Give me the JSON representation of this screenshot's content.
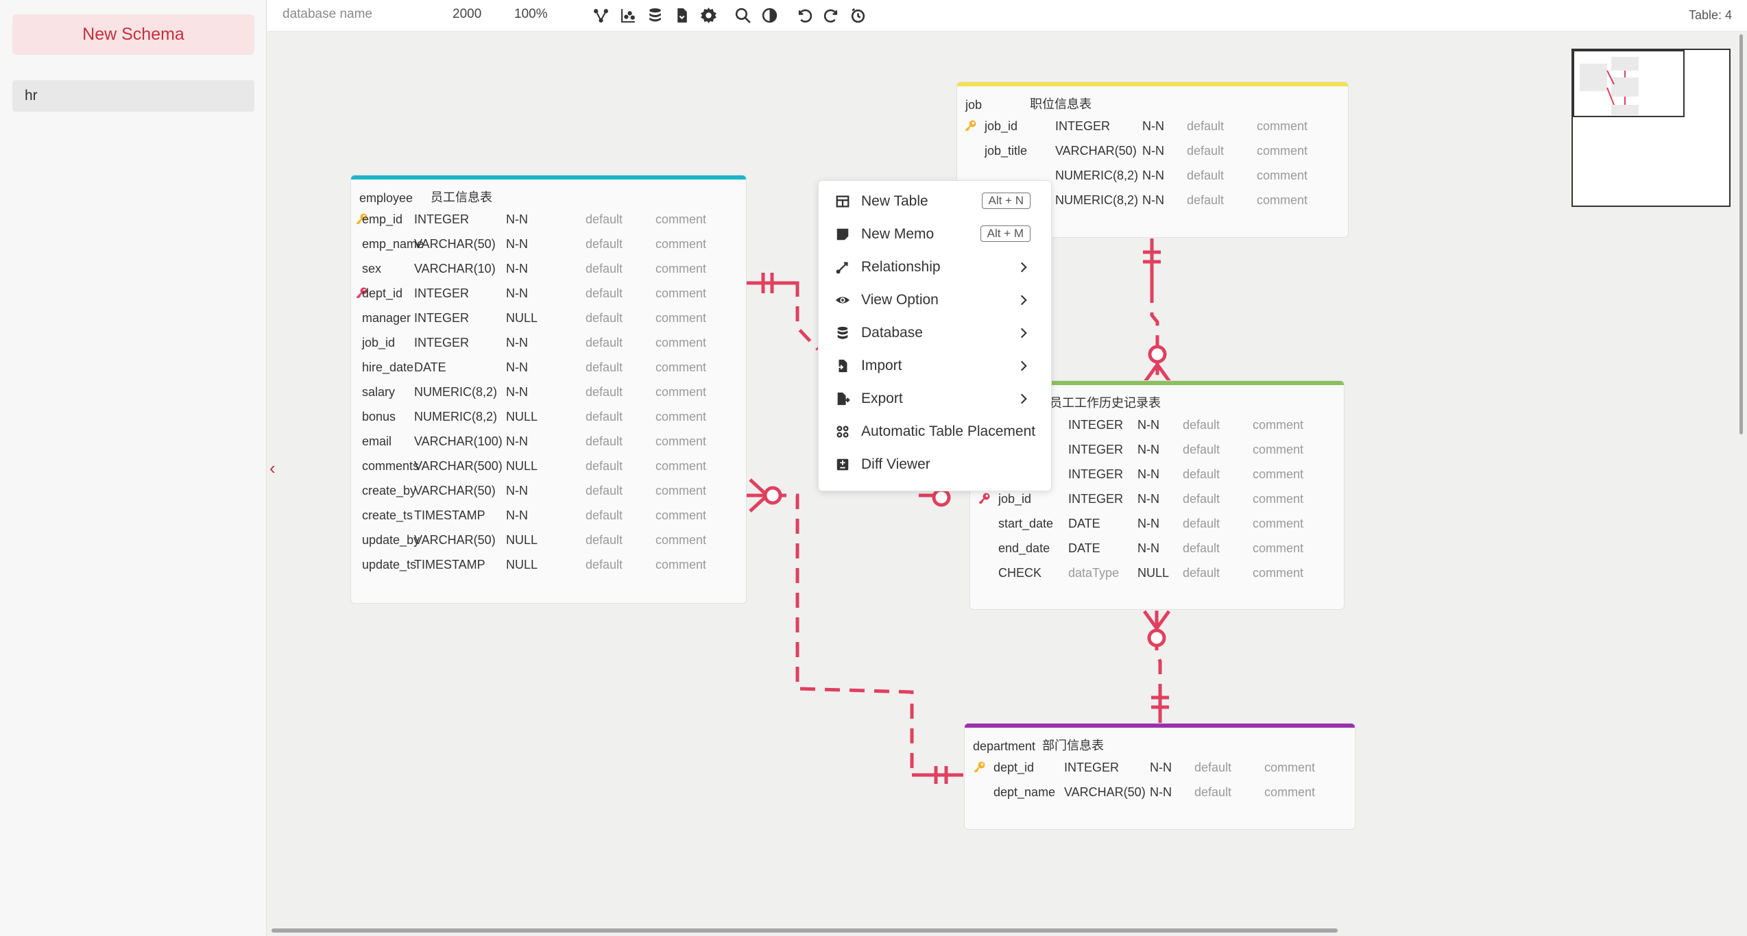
{
  "sidebar": {
    "new_schema_label": "New Schema",
    "schemas": [
      "hr"
    ],
    "collapse_icon": "chevron-left-icon"
  },
  "toolbar": {
    "database_name_placeholder": "database name",
    "canvas_size": "2000",
    "zoom": "100%",
    "icons": [
      "relation-icon",
      "chart-icon",
      "database-icon",
      "file-icon",
      "gear-icon",
      "search-icon",
      "theme-icon",
      "undo-icon",
      "redo-icon",
      "history-icon"
    ],
    "table_count": "Table: 4"
  },
  "tables": {
    "employee": {
      "name": "employee",
      "comment": "员工信息表",
      "accent": "#1fb5c8",
      "columns": [
        {
          "name": "emp_id",
          "type": "INTEGER",
          "nullable": "N-N",
          "default": "default",
          "comment": "comment",
          "key": "pk"
        },
        {
          "name": "emp_name",
          "type": "VARCHAR(50)",
          "nullable": "N-N",
          "default": "default",
          "comment": "comment",
          "key": ""
        },
        {
          "name": "sex",
          "type": "VARCHAR(10)",
          "nullable": "N-N",
          "default": "default",
          "comment": "comment",
          "key": ""
        },
        {
          "name": "dept_id",
          "type": "INTEGER",
          "nullable": "N-N",
          "default": "default",
          "comment": "comment",
          "key": "fk"
        },
        {
          "name": "manager",
          "type": "INTEGER",
          "nullable": "NULL",
          "default": "default",
          "comment": "comment",
          "key": ""
        },
        {
          "name": "job_id",
          "type": "INTEGER",
          "nullable": "N-N",
          "default": "default",
          "comment": "comment",
          "key": ""
        },
        {
          "name": "hire_date",
          "type": "DATE",
          "nullable": "N-N",
          "default": "default",
          "comment": "comment",
          "key": ""
        },
        {
          "name": "salary",
          "type": "NUMERIC(8,2)",
          "nullable": "N-N",
          "default": "default",
          "comment": "comment",
          "key": ""
        },
        {
          "name": "bonus",
          "type": "NUMERIC(8,2)",
          "nullable": "NULL",
          "default": "default",
          "comment": "comment",
          "key": ""
        },
        {
          "name": "email",
          "type": "VARCHAR(100)",
          "nullable": "N-N",
          "default": "default",
          "comment": "comment",
          "key": ""
        },
        {
          "name": "comments",
          "type": "VARCHAR(500)",
          "nullable": "NULL",
          "default": "default",
          "comment": "comment",
          "key": ""
        },
        {
          "name": "create_by",
          "type": "VARCHAR(50)",
          "nullable": "N-N",
          "default": "default",
          "comment": "comment",
          "key": ""
        },
        {
          "name": "create_ts",
          "type": "TIMESTAMP",
          "nullable": "N-N",
          "default": "default",
          "comment": "comment",
          "key": ""
        },
        {
          "name": "update_by",
          "type": "VARCHAR(50)",
          "nullable": "NULL",
          "default": "default",
          "comment": "comment",
          "key": ""
        },
        {
          "name": "update_ts",
          "type": "TIMESTAMP",
          "nullable": "NULL",
          "default": "default",
          "comment": "comment",
          "key": ""
        }
      ]
    },
    "job": {
      "name": "job",
      "comment": "职位信息表",
      "accent": "#f2e252",
      "columns": [
        {
          "name": "job_id",
          "type": "INTEGER",
          "nullable": "N-N",
          "default": "default",
          "comment": "comment",
          "key": "pk"
        },
        {
          "name": "job_title",
          "type": "VARCHAR(50)",
          "nullable": "N-N",
          "default": "default",
          "comment": "comment",
          "key": ""
        },
        {
          "name": "",
          "type": "NUMERIC(8,2)",
          "nullable": "N-N",
          "default": "default",
          "comment": "comment",
          "key": ""
        },
        {
          "name": "",
          "type": "NUMERIC(8,2)",
          "nullable": "N-N",
          "default": "default",
          "comment": "comment",
          "key": ""
        }
      ]
    },
    "job_history": {
      "name": "",
      "comment": "员工工作历史记录表",
      "accent": "#8bc15a",
      "columns": [
        {
          "name": "",
          "type": "INTEGER",
          "nullable": "N-N",
          "default": "default",
          "comment": "comment",
          "key": ""
        },
        {
          "name": "",
          "type": "INTEGER",
          "nullable": "N-N",
          "default": "default",
          "comment": "comment",
          "key": ""
        },
        {
          "name": "",
          "type": "INTEGER",
          "nullable": "N-N",
          "default": "default",
          "comment": "comment",
          "key": ""
        },
        {
          "name": "job_id",
          "type": "INTEGER",
          "nullable": "N-N",
          "default": "default",
          "comment": "comment",
          "key": "fk"
        },
        {
          "name": "start_date",
          "type": "DATE",
          "nullable": "N-N",
          "default": "default",
          "comment": "comment",
          "key": ""
        },
        {
          "name": "end_date",
          "type": "DATE",
          "nullable": "N-N",
          "default": "default",
          "comment": "comment",
          "key": ""
        },
        {
          "name": "CHECK",
          "type": "dataType",
          "nullable": "NULL",
          "default": "default",
          "comment": "comment",
          "key": ""
        }
      ]
    },
    "department": {
      "name": "department",
      "comment": "部门信息表",
      "accent": "#9b2fae",
      "columns": [
        {
          "name": "dept_id",
          "type": "INTEGER",
          "nullable": "N-N",
          "default": "default",
          "comment": "comment",
          "key": "pk"
        },
        {
          "name": "dept_name",
          "type": "VARCHAR(50)",
          "nullable": "N-N",
          "default": "default",
          "comment": "comment",
          "key": ""
        }
      ]
    }
  },
  "context_menu": {
    "items": [
      {
        "label": "New Table",
        "shortcut": "Alt + N",
        "icon": "table-icon",
        "submenu": false
      },
      {
        "label": "New Memo",
        "shortcut": "Alt + M",
        "icon": "memo-icon",
        "submenu": false
      },
      {
        "label": "Relationship",
        "shortcut": "",
        "icon": "relationship-icon",
        "submenu": true
      },
      {
        "label": "View Option",
        "shortcut": "",
        "icon": "eye-icon",
        "submenu": true
      },
      {
        "label": "Database",
        "shortcut": "",
        "icon": "database-icon",
        "submenu": true
      },
      {
        "label": "Import",
        "shortcut": "",
        "icon": "import-icon",
        "submenu": true
      },
      {
        "label": "Export",
        "shortcut": "",
        "icon": "export-icon",
        "submenu": true
      },
      {
        "label": "Automatic Table Placement",
        "shortcut": "",
        "icon": "placement-icon",
        "submenu": false
      },
      {
        "label": "Diff Viewer",
        "shortcut": "",
        "icon": "diff-icon",
        "submenu": false
      }
    ]
  },
  "colors": {
    "relation": "#e0405f",
    "primary_key": "#f2b630",
    "foreign_key": "#e0405f",
    "brand": "#c52f3d"
  }
}
